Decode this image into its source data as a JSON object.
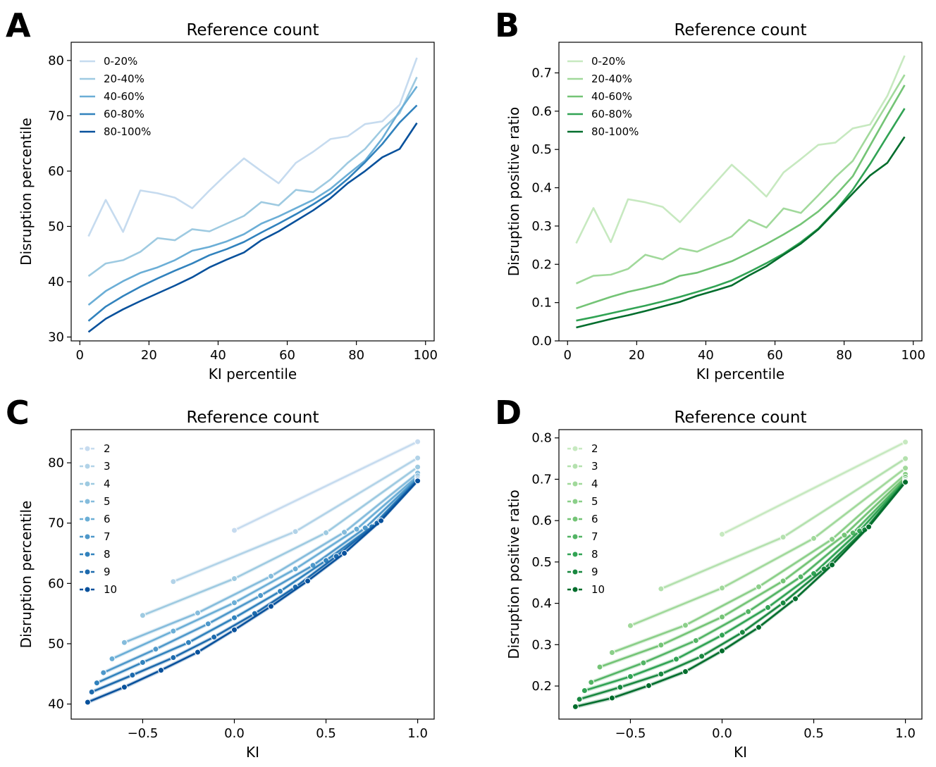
{
  "figure": {
    "palettes": {
      "blue": [
        "#c6dbef",
        "#9ecae1",
        "#6baed6",
        "#3182bd",
        "#08519c"
      ],
      "green": [
        "#c7e9c0",
        "#a1d99b",
        "#74c476",
        "#31a354",
        "#006d2c"
      ]
    }
  },
  "chart_data": [
    {
      "panel": "A",
      "type": "line",
      "title": "Reference count",
      "xlabel": "KI percentile",
      "ylabel": "Disruption percentile",
      "xlim": [
        -2.5,
        102.5
      ],
      "ylim": [
        29.3,
        83.3
      ],
      "xticks": [
        0,
        20,
        40,
        60,
        80,
        100
      ],
      "yticks": [
        30,
        40,
        50,
        60,
        70,
        80
      ],
      "legend_position": "upper left",
      "palette": "blue",
      "x": [
        2.5,
        7.5,
        12.5,
        17.5,
        22.5,
        27.5,
        32.5,
        37.5,
        42.5,
        47.5,
        52.5,
        57.5,
        62.5,
        67.5,
        72.5,
        77.5,
        82.5,
        87.5,
        92.5,
        97.5
      ],
      "series": [
        {
          "name": "0-20%",
          "values": [
            48.2,
            54.8,
            49.0,
            56.5,
            56.0,
            55.2,
            53.3,
            56.5,
            59.5,
            62.3,
            60.0,
            57.8,
            61.5,
            63.5,
            65.8,
            66.3,
            68.5,
            69.0,
            72.0,
            80.5
          ]
        },
        {
          "name": "20-40%",
          "values": [
            41.0,
            43.3,
            43.9,
            45.4,
            47.9,
            47.5,
            49.5,
            49.1,
            50.5,
            51.9,
            54.4,
            53.8,
            56.6,
            56.2,
            58.5,
            61.5,
            64.0,
            67.6,
            70.5,
            77.0
          ]
        },
        {
          "name": "40-60%",
          "values": [
            35.8,
            38.3,
            40.1,
            41.6,
            42.6,
            43.9,
            45.6,
            46.3,
            47.3,
            48.6,
            50.5,
            51.8,
            53.3,
            54.8,
            56.8,
            59.4,
            61.9,
            65.9,
            70.9,
            75.3
          ]
        },
        {
          "name": "60-80%",
          "values": [
            32.9,
            35.5,
            37.4,
            39.1,
            40.6,
            42.0,
            43.3,
            44.8,
            45.9,
            47.2,
            48.9,
            50.5,
            52.2,
            54.0,
            56.0,
            58.6,
            61.6,
            64.9,
            68.8,
            71.9
          ]
        },
        {
          "name": "80-100%",
          "values": [
            30.9,
            33.3,
            35.0,
            36.5,
            37.9,
            39.3,
            40.8,
            42.6,
            44.0,
            45.3,
            47.5,
            49.1,
            51.0,
            52.9,
            55.1,
            57.8,
            60.0,
            62.5,
            64.0,
            68.7
          ]
        }
      ]
    },
    {
      "panel": "B",
      "type": "line",
      "title": "Reference count",
      "xlabel": "KI percentile",
      "ylabel": "Disruption positive ratio",
      "xlim": [
        -2.5,
        102.5
      ],
      "ylim": [
        0.0,
        0.78
      ],
      "xticks": [
        0,
        20,
        40,
        60,
        80,
        100
      ],
      "yticks": [
        0.0,
        0.1,
        0.2,
        0.3,
        0.4,
        0.5,
        0.6,
        0.7
      ],
      "ytick_labels": [
        "0.0",
        "0.1",
        "0.2",
        "0.3",
        "0.4",
        "0.5",
        "0.6",
        "0.7"
      ],
      "legend_position": "upper left",
      "palette": "green",
      "x": [
        2.5,
        7.5,
        12.5,
        17.5,
        22.5,
        27.5,
        32.5,
        37.5,
        42.5,
        47.5,
        52.5,
        57.5,
        62.5,
        67.5,
        72.5,
        77.5,
        82.5,
        87.5,
        92.5,
        97.5
      ],
      "series": [
        {
          "name": "0-20%",
          "values": [
            0.255,
            0.347,
            0.258,
            0.37,
            0.362,
            0.35,
            0.31,
            0.36,
            0.41,
            0.46,
            0.42,
            0.377,
            0.44,
            0.475,
            0.512,
            0.518,
            0.555,
            0.565,
            0.64,
            0.745
          ]
        },
        {
          "name": "20-40%",
          "values": [
            0.15,
            0.17,
            0.173,
            0.188,
            0.225,
            0.213,
            0.242,
            0.233,
            0.253,
            0.273,
            0.316,
            0.296,
            0.346,
            0.334,
            0.38,
            0.428,
            0.47,
            0.545,
            0.62,
            0.695
          ]
        },
        {
          "name": "40-60%",
          "values": [
            0.085,
            0.1,
            0.115,
            0.128,
            0.138,
            0.15,
            0.17,
            0.178,
            0.193,
            0.208,
            0.23,
            0.253,
            0.278,
            0.305,
            0.338,
            0.38,
            0.43,
            0.51,
            0.59,
            0.668
          ]
        },
        {
          "name": "60-80%",
          "values": [
            0.053,
            0.062,
            0.072,
            0.082,
            0.092,
            0.103,
            0.115,
            0.128,
            0.142,
            0.158,
            0.18,
            0.203,
            0.228,
            0.258,
            0.293,
            0.34,
            0.395,
            0.462,
            0.535,
            0.607
          ]
        },
        {
          "name": "80-100%",
          "values": [
            0.035,
            0.046,
            0.057,
            0.067,
            0.078,
            0.09,
            0.102,
            0.118,
            0.131,
            0.145,
            0.171,
            0.195,
            0.225,
            0.254,
            0.291,
            0.338,
            0.385,
            0.432,
            0.465,
            0.533
          ]
        }
      ]
    },
    {
      "panel": "C",
      "type": "line",
      "title": "Reference count",
      "xlabel": "KI",
      "ylabel": "Disruption percentile",
      "xlim": [
        -0.89,
        1.09
      ],
      "ylim": [
        37.5,
        85.5
      ],
      "xticks": [
        -0.5,
        0.0,
        0.5,
        1.0
      ],
      "xtick_labels": [
        "−0.5",
        "0.0",
        "0.5",
        "1.0"
      ],
      "yticks": [
        40,
        50,
        60,
        70,
        80
      ],
      "legend_position": "upper left",
      "markers": true,
      "palette": "blue",
      "series": [
        {
          "name": "2",
          "x": [
            0.0,
            1.0
          ],
          "values": [
            68.8,
            83.5
          ]
        },
        {
          "name": "3",
          "x": [
            -0.333,
            0.333,
            1.0
          ],
          "values": [
            60.3,
            68.6,
            80.8
          ]
        },
        {
          "name": "4",
          "x": [
            -0.5,
            0.0,
            0.5,
            1.0
          ],
          "values": [
            54.7,
            60.8,
            68.4,
            79.3
          ]
        },
        {
          "name": "5",
          "x": [
            -0.6,
            -0.2,
            0.2,
            0.6,
            1.0
          ],
          "values": [
            50.2,
            55.1,
            61.2,
            68.5,
            78.3
          ]
        },
        {
          "name": "6",
          "x": [
            -0.667,
            -0.333,
            0.0,
            0.333,
            0.667,
            1.0
          ],
          "values": [
            47.5,
            52.1,
            56.8,
            62.4,
            69.0,
            77.8
          ]
        },
        {
          "name": "7",
          "x": [
            -0.714,
            -0.429,
            -0.143,
            0.143,
            0.429,
            0.714,
            1.0
          ],
          "values": [
            45.2,
            49.1,
            53.3,
            58.0,
            63.0,
            69.2,
            77.5
          ]
        },
        {
          "name": "8",
          "x": [
            -0.75,
            -0.5,
            -0.25,
            0.0,
            0.25,
            0.5,
            0.75,
            1.0
          ],
          "values": [
            43.5,
            46.9,
            50.2,
            54.3,
            58.7,
            63.8,
            69.4,
            77.3
          ]
        },
        {
          "name": "9",
          "x": [
            -0.778,
            -0.556,
            -0.333,
            -0.111,
            0.111,
            0.333,
            0.556,
            0.778,
            1.0
          ],
          "values": [
            42.0,
            44.8,
            47.7,
            51.1,
            55.0,
            59.4,
            64.5,
            70.0,
            77.1
          ]
        },
        {
          "name": "10",
          "x": [
            -0.8,
            -0.6,
            -0.4,
            -0.2,
            0.0,
            0.2,
            0.4,
            0.6,
            0.8,
            1.0
          ],
          "values": [
            40.3,
            42.8,
            45.6,
            48.6,
            52.3,
            56.2,
            60.4,
            65.0,
            70.4,
            77.0
          ]
        }
      ]
    },
    {
      "panel": "D",
      "type": "line",
      "title": "Reference count",
      "xlabel": "KI",
      "ylabel": "Disruption positive ratio",
      "xlim": [
        -0.89,
        1.09
      ],
      "ylim": [
        0.12,
        0.82
      ],
      "xticks": [
        -0.5,
        0.0,
        0.5,
        1.0
      ],
      "xtick_labels": [
        "−0.5",
        "0.0",
        "0.5",
        "1.0"
      ],
      "yticks": [
        0.2,
        0.3,
        0.4,
        0.5,
        0.6,
        0.7,
        0.8
      ],
      "ytick_labels": [
        "0.2",
        "0.3",
        "0.4",
        "0.5",
        "0.6",
        "0.7",
        "0.8"
      ],
      "legend_position": "upper left",
      "markers": true,
      "palette": "green",
      "series": [
        {
          "name": "2",
          "x": [
            0.0,
            1.0
          ],
          "values": [
            0.567,
            0.79
          ]
        },
        {
          "name": "3",
          "x": [
            -0.333,
            0.333,
            1.0
          ],
          "values": [
            0.435,
            0.56,
            0.75
          ]
        },
        {
          "name": "4",
          "x": [
            -0.5,
            0.0,
            0.5,
            1.0
          ],
          "values": [
            0.346,
            0.437,
            0.557,
            0.727
          ]
        },
        {
          "name": "5",
          "x": [
            -0.6,
            -0.2,
            0.2,
            0.6,
            1.0
          ],
          "values": [
            0.281,
            0.347,
            0.44,
            0.555,
            0.712
          ]
        },
        {
          "name": "6",
          "x": [
            -0.667,
            -0.333,
            0.0,
            0.333,
            0.667,
            1.0
          ],
          "values": [
            0.246,
            0.299,
            0.367,
            0.454,
            0.565,
            0.705
          ]
        },
        {
          "name": "7",
          "x": [
            -0.714,
            -0.429,
            -0.143,
            0.143,
            0.429,
            0.714,
            1.0
          ],
          "values": [
            0.209,
            0.256,
            0.31,
            0.38,
            0.464,
            0.57,
            0.7
          ]
        },
        {
          "name": "8",
          "x": [
            -0.75,
            -0.5,
            -0.25,
            0.0,
            0.25,
            0.5,
            0.75,
            1.0
          ],
          "values": [
            0.189,
            0.223,
            0.265,
            0.323,
            0.39,
            0.472,
            0.575,
            0.697
          ]
        },
        {
          "name": "9",
          "x": [
            -0.778,
            -0.556,
            -0.333,
            -0.111,
            0.111,
            0.333,
            0.556,
            0.778,
            1.0
          ],
          "values": [
            0.168,
            0.197,
            0.229,
            0.272,
            0.33,
            0.401,
            0.483,
            0.578,
            0.695
          ]
        },
        {
          "name": "10",
          "x": [
            -0.8,
            -0.6,
            -0.4,
            -0.2,
            0.0,
            0.2,
            0.4,
            0.6,
            0.8,
            1.0
          ],
          "values": [
            0.15,
            0.171,
            0.201,
            0.235,
            0.285,
            0.342,
            0.411,
            0.493,
            0.585,
            0.693
          ]
        }
      ]
    }
  ]
}
